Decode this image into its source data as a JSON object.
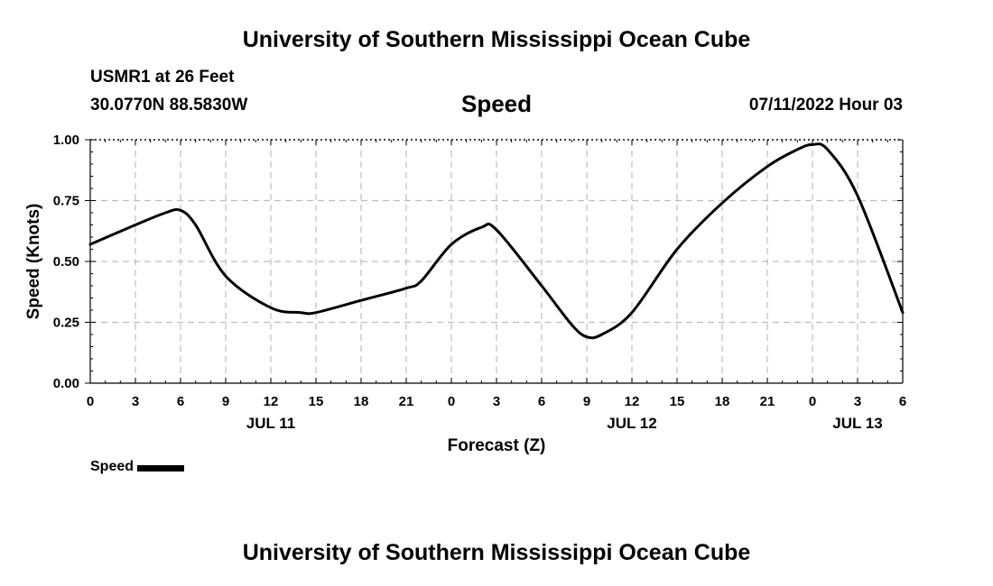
{
  "header": {
    "title_top": "University of Southern Mississippi Ocean Cube",
    "station": "USMR1 at 26 Feet",
    "coords": "30.0770N  88.5830W",
    "datetime": "07/11/2022 Hour 03",
    "title_bottom": "University of Southern Mississippi Ocean Cube"
  },
  "legend": {
    "label": "Speed",
    "color": "#000000"
  },
  "chart_data": {
    "type": "line",
    "title": "Speed",
    "xlabel": "Forecast (Z)",
    "ylabel": "Speed (Knots)",
    "xlim": [
      0,
      54
    ],
    "ylim": [
      0,
      1.0
    ],
    "grid": true,
    "legend_position": "bottom-left",
    "x_ticks": [
      {
        "x": 0,
        "label": "0"
      },
      {
        "x": 3,
        "label": "3"
      },
      {
        "x": 6,
        "label": "6"
      },
      {
        "x": 9,
        "label": "9"
      },
      {
        "x": 12,
        "label": "12"
      },
      {
        "x": 15,
        "label": "15"
      },
      {
        "x": 18,
        "label": "18"
      },
      {
        "x": 21,
        "label": "21"
      },
      {
        "x": 24,
        "label": "0"
      },
      {
        "x": 27,
        "label": "3"
      },
      {
        "x": 30,
        "label": "6"
      },
      {
        "x": 33,
        "label": "9"
      },
      {
        "x": 36,
        "label": "12"
      },
      {
        "x": 39,
        "label": "15"
      },
      {
        "x": 42,
        "label": "18"
      },
      {
        "x": 45,
        "label": "21"
      },
      {
        "x": 48,
        "label": "0"
      },
      {
        "x": 51,
        "label": "3"
      },
      {
        "x": 54,
        "label": "6"
      }
    ],
    "day_labels": [
      {
        "x": 12,
        "label": "JUL 11"
      },
      {
        "x": 36,
        "label": "JUL 12"
      },
      {
        "x": 51,
        "label": "JUL 13"
      }
    ],
    "y_ticks": [
      {
        "y": 0,
        "label": "0.00"
      },
      {
        "y": 0.25,
        "label": "0.25"
      },
      {
        "y": 0.5,
        "label": "0.50"
      },
      {
        "y": 0.75,
        "label": "0.75"
      },
      {
        "y": 1.0,
        "label": "1.00"
      }
    ],
    "series": [
      {
        "name": "Speed",
        "color": "#000000",
        "x": [
          0,
          3,
          5,
          6,
          7,
          9,
          12,
          14,
          15,
          18,
          21,
          22,
          24,
          26,
          27,
          30,
          32,
          33,
          34,
          36,
          39,
          42,
          45,
          47,
          48,
          49,
          51,
          54
        ],
        "y": [
          0.57,
          0.65,
          0.7,
          0.71,
          0.65,
          0.44,
          0.31,
          0.29,
          0.29,
          0.34,
          0.39,
          0.42,
          0.57,
          0.64,
          0.63,
          0.4,
          0.24,
          0.19,
          0.2,
          0.29,
          0.55,
          0.74,
          0.89,
          0.96,
          0.98,
          0.96,
          0.77,
          0.29
        ]
      }
    ]
  }
}
